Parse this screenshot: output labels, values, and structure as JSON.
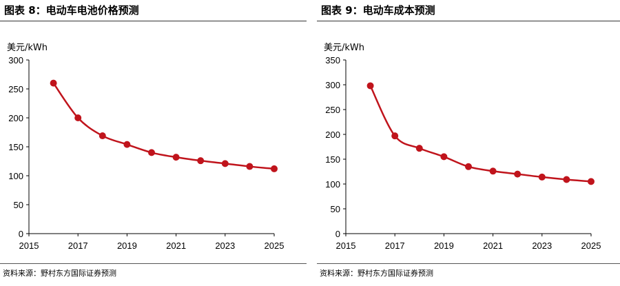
{
  "charts": [
    {
      "title": "图表 8：电动车电池价格预测",
      "unit": "美元/kWh",
      "source": "资料来源：野村东方国际证券预测"
    },
    {
      "title": "图表 9：电动车成本预测",
      "unit": "美元/kWh",
      "source": "资料来源：野村东方国际证券预测"
    }
  ],
  "series_color": "#c0141c",
  "chart_data": [
    {
      "type": "line",
      "title": "图表 8：电动车电池价格预测",
      "ylabel": "美元/kWh",
      "xlim": [
        2015,
        2025
      ],
      "ylim": [
        0,
        300
      ],
      "xticks": [
        2015,
        2017,
        2019,
        2021,
        2023,
        2025
      ],
      "yticks": [
        0,
        50,
        100,
        150,
        200,
        250,
        300
      ],
      "grid": false,
      "series": [
        {
          "x": [
            2016,
            2017,
            2018,
            2019,
            2020,
            2021,
            2022,
            2023,
            2024,
            2025
          ],
          "values": [
            260,
            200,
            169,
            154,
            140,
            132,
            126,
            121,
            116,
            112
          ]
        }
      ]
    },
    {
      "type": "line",
      "title": "图表 9：电动车成本预测",
      "ylabel": "美元/kWh",
      "xlim": [
        2015,
        2025
      ],
      "ylim": [
        0,
        350
      ],
      "xticks": [
        2015,
        2017,
        2019,
        2021,
        2023,
        2025
      ],
      "yticks": [
        0,
        50,
        100,
        150,
        200,
        250,
        300,
        350
      ],
      "grid": false,
      "series": [
        {
          "x": [
            2016,
            2017,
            2018,
            2019,
            2020,
            2021,
            2022,
            2023,
            2024,
            2025
          ],
          "values": [
            298,
            197,
            172,
            155,
            135,
            126,
            120,
            114,
            109,
            105
          ]
        }
      ]
    }
  ]
}
